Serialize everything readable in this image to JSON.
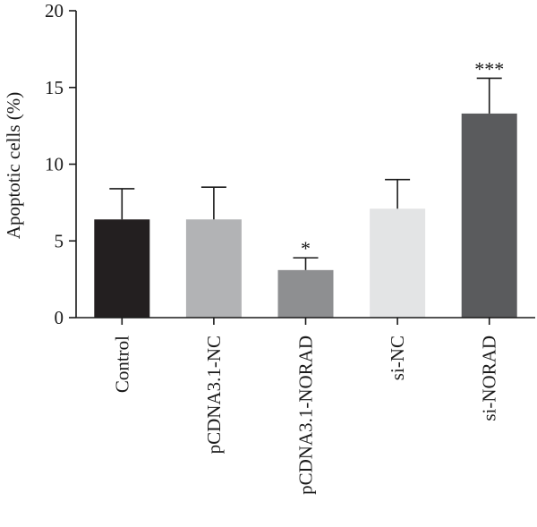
{
  "chart_data": {
    "type": "bar",
    "title": "",
    "xlabel": "",
    "ylabel": "Apoptotic cells (%)",
    "ylim": [
      0,
      20
    ],
    "yticks": [
      0,
      5,
      10,
      15,
      20
    ],
    "categories": [
      "Control",
      "pCDNA3.1-NC",
      "pCDNA3.1-NORAD",
      "si-NC",
      "si-NORAD"
    ],
    "values": [
      6.4,
      6.4,
      3.1,
      7.1,
      13.3
    ],
    "errors": [
      2.0,
      2.1,
      0.8,
      1.9,
      2.3
    ],
    "significance": [
      "",
      "",
      "*",
      "",
      "***"
    ],
    "colors": [
      "#231f20",
      "#b2b3b5",
      "#8e8f91",
      "#e3e4e5",
      "#5a5b5d"
    ],
    "grid": false,
    "legend": "none"
  }
}
